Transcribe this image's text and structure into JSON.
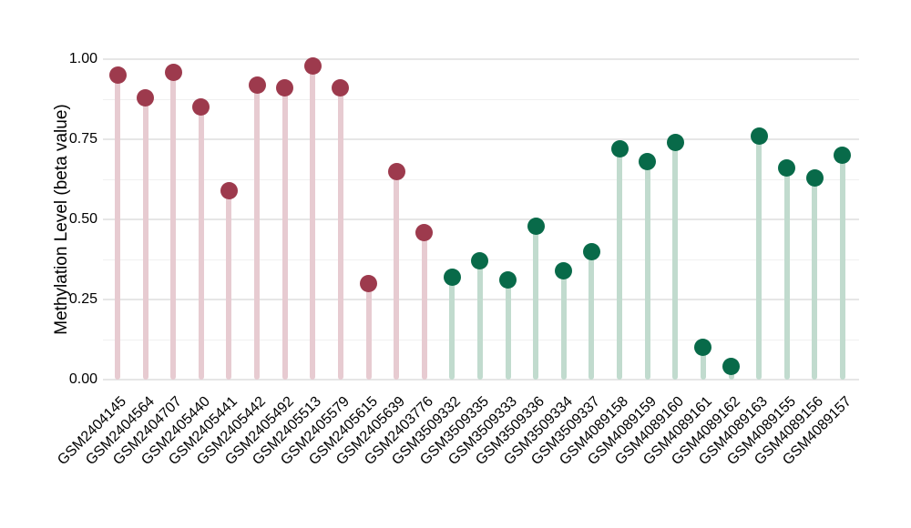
{
  "chart_data": {
    "type": "scatter",
    "variant": "lollipop",
    "title": "",
    "xlabel": "",
    "ylabel": "Methylation Level (beta value)",
    "ylim": [
      0.0,
      1.0
    ],
    "ytick_labels": [
      "0.00",
      "0.25",
      "0.50",
      "0.75",
      "1.00"
    ],
    "ytick_values": [
      0.0,
      0.25,
      0.5,
      0.75,
      1.0
    ],
    "grid": "horizontal major gridlines at 0.25 steps with minor gridlines at 0.125 steps, no vertical gridlines",
    "legend_position": "none",
    "series": [
      {
        "name": "maroon-group",
        "dot_color": "#9d3a4d",
        "stem_color": "#e7cbd1",
        "points": [
          {
            "label": "GSM2404145",
            "value": 0.95
          },
          {
            "label": "GSM2404564",
            "value": 0.88
          },
          {
            "label": "GSM2404707",
            "value": 0.96
          },
          {
            "label": "GSM2405440",
            "value": 0.85
          },
          {
            "label": "GSM2405441",
            "value": 0.59
          },
          {
            "label": "GSM2405442",
            "value": 0.92
          },
          {
            "label": "GSM2405492",
            "value": 0.91
          },
          {
            "label": "GSM2405513",
            "value": 0.98
          },
          {
            "label": "GSM2405579",
            "value": 0.91
          },
          {
            "label": "GSM2405615",
            "value": 0.3
          },
          {
            "label": "GSM2405639",
            "value": 0.65
          },
          {
            "label": "GSM2403776",
            "value": 0.46
          }
        ]
      },
      {
        "name": "green-group",
        "dot_color": "#086a49",
        "stem_color": "#c1dbce",
        "points": [
          {
            "label": "GSM3509332",
            "value": 0.32
          },
          {
            "label": "GSM3509335",
            "value": 0.37
          },
          {
            "label": "GSM3509333",
            "value": 0.31
          },
          {
            "label": "GSM3509336",
            "value": 0.48
          },
          {
            "label": "GSM3509334",
            "value": 0.34
          },
          {
            "label": "GSM3509337",
            "value": 0.4
          },
          {
            "label": "GSM4089158",
            "value": 0.72
          },
          {
            "label": "GSM4089159",
            "value": 0.68
          },
          {
            "label": "GSM4089160",
            "value": 0.74
          },
          {
            "label": "GSM4089161",
            "value": 0.1
          },
          {
            "label": "GSM4089162",
            "value": 0.04
          },
          {
            "label": "GSM4089163",
            "value": 0.76
          },
          {
            "label": "GSM4089155",
            "value": 0.66
          },
          {
            "label": "GSM4089156",
            "value": 0.63
          },
          {
            "label": "GSM4089157",
            "value": 0.7
          }
        ]
      }
    ]
  }
}
